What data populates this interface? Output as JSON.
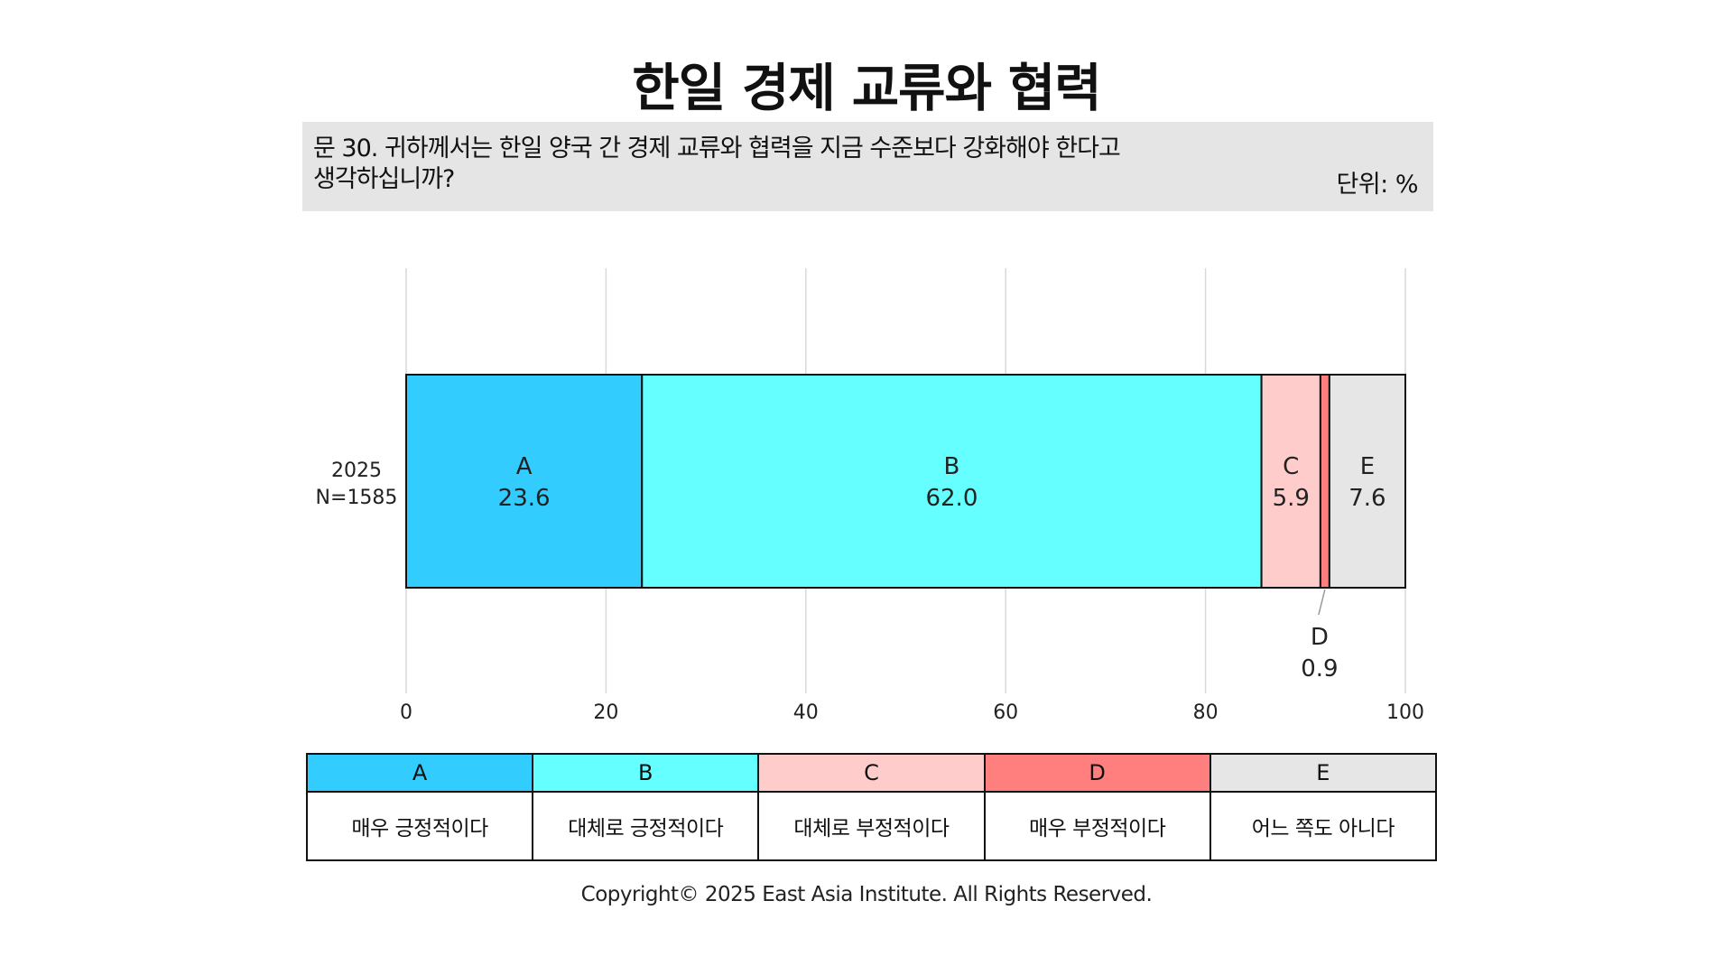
{
  "title": "한일 경제 교류와 협력",
  "question": "문 30. 귀하께서는 한일 양국 간 경제 교류와 협력을 지금 수준보다 강화해야 한다고\n생각하십니까?",
  "unit": "단위: %",
  "copyright": "Copyright© 2025 East Asia Institute. All Rights Reserved.",
  "chart_data": {
    "type": "bar",
    "orientation": "horizontal-stacked",
    "xlim": [
      0,
      100
    ],
    "x_ticks": [
      "0",
      "20",
      "40",
      "60",
      "80",
      "100"
    ],
    "grid": true,
    "category_label": [
      "2025",
      "N=1585"
    ],
    "series": [
      {
        "name": "A",
        "value": 23.6,
        "label": "23.6",
        "color": "#33ccff"
      },
      {
        "name": "B",
        "value": 62.0,
        "label": "62.0",
        "color": "#66ffff"
      },
      {
        "name": "C",
        "value": 5.9,
        "label": "5.9",
        "color": "#ffcccc"
      },
      {
        "name": "D",
        "value": 0.9,
        "label": "0.9",
        "color": "#ff7f7f",
        "label_position": "below"
      },
      {
        "name": "E",
        "value": 7.6,
        "label": "7.6",
        "color": "#e6e6e6"
      }
    ]
  },
  "legend": [
    {
      "key": "A",
      "desc": "매우 긍정적이다",
      "color": "#33ccff"
    },
    {
      "key": "B",
      "desc": "대체로 긍정적이다",
      "color": "#66ffff"
    },
    {
      "key": "C",
      "desc": "대체로 부정적이다",
      "color": "#ffcccc"
    },
    {
      "key": "D",
      "desc": "매우 부정적이다",
      "color": "#ff7f7f"
    },
    {
      "key": "E",
      "desc": "어느 쪽도 아니다",
      "color": "#e6e6e6"
    }
  ]
}
